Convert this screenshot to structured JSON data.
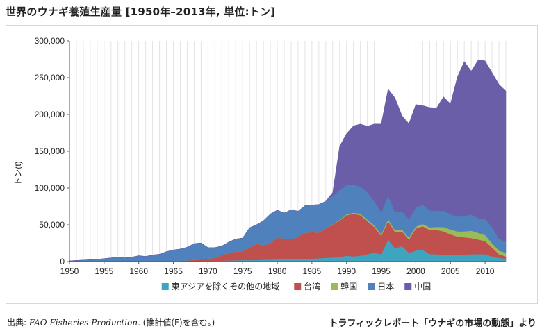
{
  "title": "世界のウナギ養殖生産量 [1950年–2013年, 単位:トン]",
  "source": {
    "prefix": "出典: ",
    "publication": "FAO Fisheries Production.",
    "suffix": " (推計値(F)を含む。)"
  },
  "credit": "トラフィックレポート「ウナギの市場の動態」より",
  "chart_data": {
    "type": "area",
    "stacked": true,
    "ylabel": "トン(t)",
    "xlim": [
      1950,
      2013
    ],
    "ylim": [
      0,
      300000
    ],
    "yticks": [
      0,
      50000,
      100000,
      150000,
      200000,
      250000,
      300000
    ],
    "ytick_labels": [
      "0",
      "50,000",
      "100,000",
      "150,000",
      "200,000",
      "250,000",
      "300,000"
    ],
    "xticks": [
      1950,
      1955,
      1960,
      1965,
      1970,
      1975,
      1980,
      1985,
      1990,
      1995,
      2000,
      2005,
      2010
    ],
    "grid": "vertical-yearly",
    "legend_position": "bottom",
    "x": [
      1950,
      1951,
      1952,
      1953,
      1954,
      1955,
      1956,
      1957,
      1958,
      1959,
      1960,
      1961,
      1962,
      1963,
      1964,
      1965,
      1966,
      1967,
      1968,
      1969,
      1970,
      1971,
      1972,
      1973,
      1974,
      1975,
      1976,
      1977,
      1978,
      1979,
      1980,
      1981,
      1982,
      1983,
      1984,
      1985,
      1986,
      1987,
      1988,
      1989,
      1990,
      1991,
      1992,
      1993,
      1994,
      1995,
      1996,
      1997,
      1998,
      1999,
      2000,
      2001,
      2002,
      2003,
      2004,
      2005,
      2006,
      2007,
      2008,
      2009,
      2010,
      2011,
      2012,
      2013
    ],
    "series": [
      {
        "name": "東アジアを除くその他の地域",
        "color": "#3ea4bf",
        "values": [
          0,
          0,
          0,
          0,
          0,
          0,
          0,
          0,
          0,
          0,
          0,
          0,
          0,
          0,
          0,
          0,
          0,
          0,
          500,
          800,
          1000,
          1000,
          1200,
          1500,
          1700,
          2000,
          2000,
          2000,
          2500,
          2700,
          3000,
          3000,
          3500,
          3500,
          4000,
          4000,
          4500,
          5000,
          5500,
          6000,
          8000,
          7000,
          8000,
          10000,
          12000,
          10000,
          30000,
          18000,
          21000,
          12000,
          15000,
          16000,
          10000,
          10000,
          9000,
          9000,
          9000,
          9000,
          10000,
          10000,
          10000,
          7000,
          5000,
          4000
        ]
      },
      {
        "name": "台湾",
        "color": "#c0504d",
        "values": [
          0,
          0,
          0,
          0,
          0,
          0,
          0,
          0,
          0,
          0,
          0,
          0,
          0,
          0,
          500,
          800,
          1000,
          1500,
          2000,
          2500,
          3000,
          4000,
          8000,
          10000,
          12000,
          12000,
          17000,
          22000,
          20000,
          22000,
          30000,
          28000,
          27000,
          30000,
          35000,
          36000,
          35000,
          40000,
          45000,
          50000,
          55000,
          58000,
          55000,
          45000,
          35000,
          25000,
          25000,
          22000,
          20000,
          18000,
          30000,
          32000,
          33000,
          33000,
          32000,
          28000,
          25000,
          24000,
          22000,
          20000,
          18000,
          12000,
          5000,
          3000
        ]
      },
      {
        "name": "韓国",
        "color": "#9bbb59",
        "values": [
          0,
          0,
          0,
          0,
          0,
          0,
          0,
          0,
          0,
          0,
          0,
          0,
          0,
          0,
          0,
          0,
          0,
          0,
          0,
          0,
          0,
          0,
          0,
          0,
          0,
          0,
          0,
          0,
          0,
          0,
          0,
          0,
          0,
          0,
          0,
          0,
          0,
          0,
          500,
          800,
          1000,
          1500,
          2000,
          2000,
          2000,
          2000,
          2500,
          2500,
          2500,
          2500,
          2500,
          3000,
          3500,
          4000,
          6000,
          6500,
          7000,
          8000,
          10000,
          9000,
          8000,
          6000,
          5000,
          5000
        ]
      },
      {
        "name": "日本",
        "color": "#4f81bd",
        "values": [
          1000,
          1500,
          2000,
          2500,
          3000,
          4000,
          5000,
          6000,
          5000,
          6000,
          8000,
          7000,
          9000,
          10000,
          13000,
          15000,
          16000,
          18000,
          22000,
          22000,
          15000,
          14000,
          12000,
          15000,
          17000,
          18000,
          27000,
          26000,
          33000,
          40000,
          37000,
          35000,
          40000,
          35000,
          37000,
          37000,
          38000,
          37000,
          38000,
          40000,
          40000,
          38000,
          37000,
          37000,
          33000,
          30000,
          32000,
          25000,
          25000,
          25000,
          26000,
          26000,
          23000,
          22000,
          22000,
          21000,
          20000,
          21000,
          22000,
          20000,
          22000,
          22000,
          16000,
          15000
        ]
      },
      {
        "name": "中国",
        "color": "#6a5ea8",
        "values": [
          0,
          0,
          0,
          0,
          0,
          0,
          0,
          0,
          0,
          0,
          0,
          0,
          0,
          0,
          0,
          0,
          0,
          0,
          0,
          0,
          0,
          0,
          0,
          0,
          0,
          0,
          0,
          0,
          0,
          0,
          0,
          0,
          0,
          0,
          0,
          0,
          0,
          0,
          5000,
          60000,
          70000,
          80000,
          85000,
          90000,
          105000,
          120000,
          145000,
          155000,
          130000,
          130000,
          140000,
          135000,
          140000,
          140000,
          155000,
          150000,
          190000,
          210000,
          195000,
          215000,
          215000,
          210000,
          210000,
          205000
        ]
      }
    ]
  }
}
